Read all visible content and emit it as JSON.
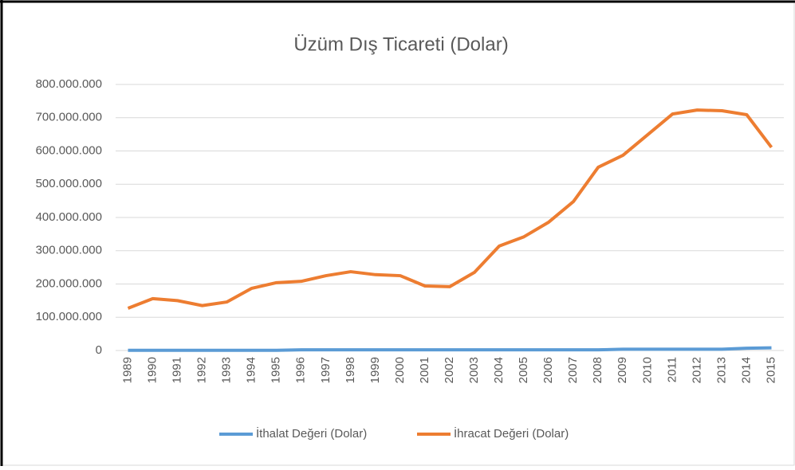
{
  "chart_data": {
    "type": "line",
    "title": "Üzüm Dış Ticareti  (Dolar)",
    "categories": [
      "1989",
      "1990",
      "1991",
      "1992",
      "1993",
      "1994",
      "1995",
      "1996",
      "1997",
      "1998",
      "1999",
      "2000",
      "2001",
      "2002",
      "2003",
      "2004",
      "2005",
      "2006",
      "2007",
      "2008",
      "2009",
      "2010",
      "2011",
      "2012",
      "2013",
      "2014",
      "2015"
    ],
    "series": [
      {
        "name": "İthalat Değeri (Dolar)",
        "color": "#5b9bd5",
        "values": [
          500000,
          500000,
          500000,
          500000,
          500000,
          500000,
          500000,
          2000000,
          2000000,
          2000000,
          2000000,
          2000000,
          2000000,
          2000000,
          2000000,
          2000000,
          2000000,
          2000000,
          2000000,
          2000000,
          4000000,
          4000000,
          4000000,
          4000000,
          4000000,
          7000000,
          8000000
        ]
      },
      {
        "name": "İhracat Değeri (Dolar)",
        "color": "#ed7d31",
        "values": [
          127000000,
          156000000,
          150000000,
          135000000,
          146000000,
          187000000,
          204000000,
          208000000,
          225000000,
          237000000,
          228000000,
          225000000,
          194000000,
          192000000,
          235000000,
          314000000,
          342000000,
          386000000,
          448000000,
          551000000,
          587000000,
          649000000,
          711000000,
          723000000,
          721000000,
          709000000,
          611000000
        ]
      }
    ],
    "ylim": [
      0,
      800000000
    ],
    "yticks": [
      0,
      {
        "value": 100000000,
        "label": "100.000.000"
      },
      {
        "value": 200000000,
        "label": "200.000.000"
      },
      {
        "value": 300000000,
        "label": "300.000.000"
      },
      {
        "value": 400000000,
        "label": "400.000.000"
      },
      {
        "value": 500000000,
        "label": "500.000.000"
      },
      {
        "value": 600000000,
        "label": "600.000.000"
      },
      {
        "value": 700000000,
        "label": "700.000.000"
      },
      {
        "value": 800000000,
        "label": "800.000.000"
      }
    ],
    "grid": true,
    "legend": "bottom"
  }
}
